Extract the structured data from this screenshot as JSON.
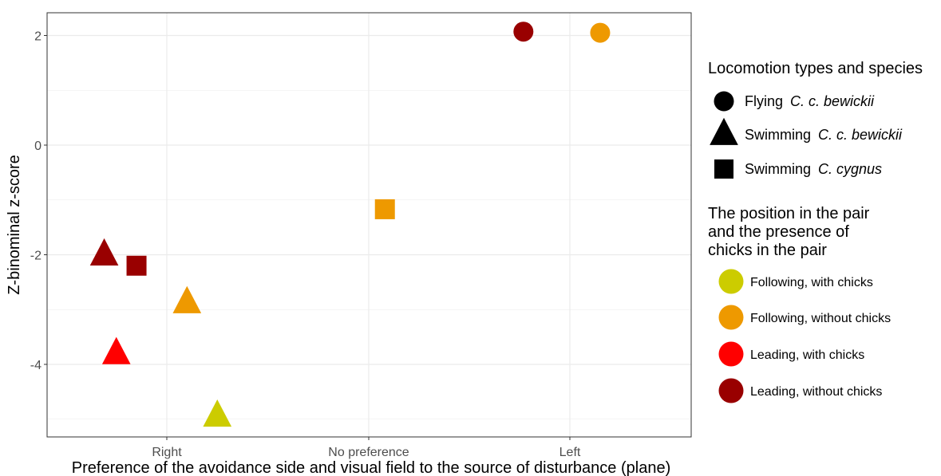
{
  "chart_data": {
    "type": "scatter",
    "xlabel": "Preference of the avoidance side and visual field to the source of disturbance (plane)",
    "ylabel": "Z-binominal z-score",
    "x_categories": [
      "Right",
      "No preference",
      "Left"
    ],
    "y_ticks": [
      2,
      0,
      -2,
      -4
    ],
    "ylim": [
      -5.3,
      2.4
    ],
    "grid": true,
    "legend_position": "right",
    "shape_legend": {
      "title": "Locomotion types and species",
      "items": [
        {
          "shape": "circle",
          "prefix": "Flying ",
          "species": "C. c. bewickii"
        },
        {
          "shape": "triangle",
          "prefix": "Swimming ",
          "species": "C. c. bewickii"
        },
        {
          "shape": "square",
          "prefix": "Swimming ",
          "species": "C. cygnus"
        }
      ]
    },
    "color_legend": {
      "title_lines": [
        "The position in the pair",
        "and the presence of",
        "chicks in the pair"
      ],
      "items": [
        {
          "label": "Following, with chicks",
          "color": "#cccc00"
        },
        {
          "label": "Following, without chicks",
          "color": "#ee9900"
        },
        {
          "label": "Leading, with chicks",
          "color": "#ff0000"
        },
        {
          "label": "Leading, without chicks",
          "color": "#990000"
        }
      ]
    },
    "points": [
      {
        "x": "Left",
        "jitter": -0.23,
        "y": 2.07,
        "shape": "circle",
        "group": "Leading, without chicks",
        "color": "#990000"
      },
      {
        "x": "Left",
        "jitter": 0.15,
        "y": 2.05,
        "shape": "circle",
        "group": "Following, without chicks",
        "color": "#ee9900"
      },
      {
        "x": "No preference",
        "jitter": 0.08,
        "y": -1.17,
        "shape": "square",
        "group": "Following, without chicks",
        "color": "#ee9900"
      },
      {
        "x": "Right",
        "jitter": -0.31,
        "y": -1.98,
        "shape": "triangle",
        "group": "Leading, without chicks",
        "color": "#990000"
      },
      {
        "x": "Right",
        "jitter": -0.15,
        "y": -2.2,
        "shape": "square",
        "group": "Leading, without chicks",
        "color": "#990000"
      },
      {
        "x": "Right",
        "jitter": 0.1,
        "y": -2.85,
        "shape": "triangle",
        "group": "Following, without chicks",
        "color": "#ee9900"
      },
      {
        "x": "Right",
        "jitter": -0.25,
        "y": -3.78,
        "shape": "triangle",
        "group": "Leading, with chicks",
        "color": "#ff0000"
      },
      {
        "x": "Right",
        "jitter": 0.25,
        "y": -4.92,
        "shape": "triangle",
        "group": "Following, with chicks",
        "color": "#cccc00"
      }
    ]
  }
}
